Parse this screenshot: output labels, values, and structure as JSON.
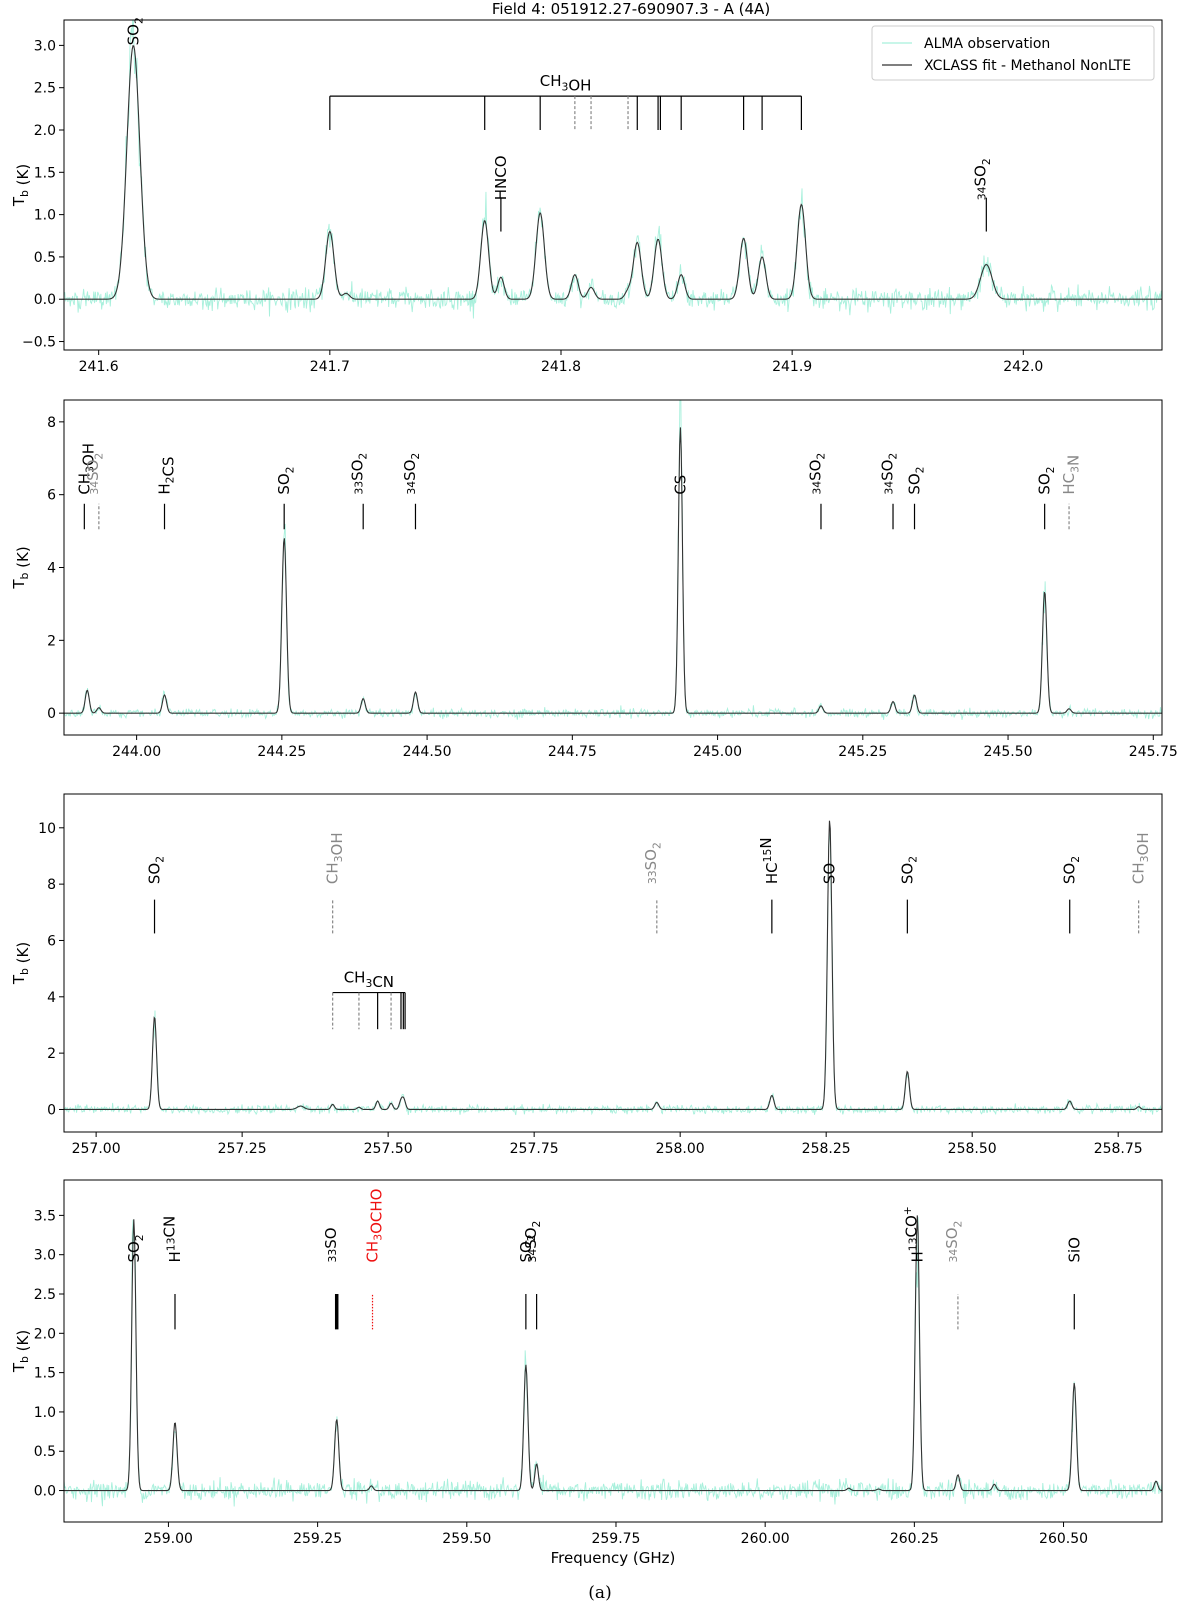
{
  "figure": {
    "title": "Field 4: 051912.27-690907.3 - A (4A)",
    "caption": "(a)",
    "legend": {
      "placement": "top-right",
      "entries": [
        "ALMA observation",
        "XCLASS fit - Methanol NonLTE"
      ]
    },
    "colors": {
      "observation": "#a8f0dc",
      "fit": "#333333",
      "label": "#000000",
      "tentative": "#888888",
      "highlight": "#ee1111"
    }
  },
  "chart_data": [
    {
      "type": "line",
      "panel": 1,
      "xlim": [
        241.585,
        242.06
      ],
      "ylim": [
        -0.6,
        3.3
      ],
      "xticks": [
        "241.6",
        "241.7",
        "241.8",
        "241.9",
        "242.0"
      ],
      "xtick_values": [
        241.6,
        241.7,
        241.8,
        241.9,
        242.0
      ],
      "yticks": [
        "−0.5",
        "0.0",
        "0.5",
        "1.0",
        "1.5",
        "2.0",
        "2.5",
        "3.0"
      ],
      "ytick_values": [
        -0.5,
        0,
        0.5,
        1.0,
        1.5,
        2.0,
        2.5,
        3.0
      ],
      "ylabel": "Tb (K)",
      "xlabel": "",
      "noise": 0.06,
      "peaks": [
        {
          "x": 241.615,
          "y": 3.0,
          "w": 0.0028
        },
        {
          "x": 241.7,
          "y": 0.8,
          "w": 0.0018
        },
        {
          "x": 241.707,
          "y": 0.07,
          "w": 0.0015
        },
        {
          "x": 241.767,
          "y": 0.93,
          "w": 0.0017
        },
        {
          "x": 241.774,
          "y": 0.26,
          "w": 0.0014
        },
        {
          "x": 241.791,
          "y": 1.02,
          "w": 0.0018
        },
        {
          "x": 241.806,
          "y": 0.29,
          "w": 0.0015
        },
        {
          "x": 241.813,
          "y": 0.14,
          "w": 0.0015
        },
        {
          "x": 241.829,
          "y": 0.09,
          "w": 0.0014
        },
        {
          "x": 241.833,
          "y": 0.67,
          "w": 0.0017
        },
        {
          "x": 241.842,
          "y": 0.71,
          "w": 0.0017
        },
        {
          "x": 241.852,
          "y": 0.29,
          "w": 0.0015
        },
        {
          "x": 241.879,
          "y": 0.72,
          "w": 0.0017
        },
        {
          "x": 241.887,
          "y": 0.5,
          "w": 0.0016
        },
        {
          "x": 241.904,
          "y": 1.12,
          "w": 0.0018
        },
        {
          "x": 241.984,
          "y": 0.41,
          "w": 0.0025
        }
      ],
      "labels": [
        {
          "x": 241.615,
          "text": "SO2",
          "tick": false,
          "color": "label",
          "y": 3.0
        },
        {
          "x": 241.774,
          "text": "HNCO",
          "tick": true,
          "color": "label",
          "y": 1.17,
          "ty0": 0.8,
          "ty1": 1.2
        },
        {
          "x": 241.984,
          "text": "34SO2",
          "tick": true,
          "color": "label",
          "y": 1.17,
          "ty0": 0.8,
          "ty1": 1.2
        }
      ],
      "brackets": [
        {
          "label": "CH3OH",
          "y": 2.4,
          "x0": 241.7,
          "x1": 241.904,
          "ybot": 2.0,
          "solid": [
            241.7,
            241.767,
            241.791,
            241.833,
            241.842,
            241.843,
            241.852,
            241.879,
            241.887,
            241.904
          ],
          "dashed": [
            241.806,
            241.813,
            241.829
          ]
        }
      ]
    },
    {
      "type": "line",
      "panel": 2,
      "xlim": [
        243.875,
        245.765
      ],
      "ylim": [
        -0.6,
        8.6
      ],
      "xticks": [
        "244.00",
        "244.25",
        "244.50",
        "244.75",
        "245.00",
        "245.25",
        "245.50",
        "245.75"
      ],
      "xtick_values": [
        244.0,
        244.25,
        244.5,
        244.75,
        245.0,
        245.25,
        245.5,
        245.75
      ],
      "yticks": [
        "0",
        "2",
        "4",
        "6",
        "8"
      ],
      "ytick_values": [
        0,
        2,
        4,
        6,
        8
      ],
      "ylabel": "Tb (K)",
      "xlabel": "",
      "noise": 0.06,
      "peaks": [
        {
          "x": 243.915,
          "y": 0.63,
          "w": 0.0035
        },
        {
          "x": 243.935,
          "y": 0.15,
          "w": 0.0035
        },
        {
          "x": 244.048,
          "y": 0.5,
          "w": 0.0035
        },
        {
          "x": 244.254,
          "y": 4.82,
          "w": 0.004
        },
        {
          "x": 244.39,
          "y": 0.4,
          "w": 0.0035
        },
        {
          "x": 244.48,
          "y": 0.58,
          "w": 0.0035
        },
        {
          "x": 244.936,
          "y": 7.85,
          "w": 0.0035
        },
        {
          "x": 245.178,
          "y": 0.2,
          "w": 0.0035
        },
        {
          "x": 245.302,
          "y": 0.32,
          "w": 0.0035
        },
        {
          "x": 245.339,
          "y": 0.5,
          "w": 0.0035
        },
        {
          "x": 245.563,
          "y": 3.35,
          "w": 0.0038
        },
        {
          "x": 245.605,
          "y": 0.12,
          "w": 0.0035
        }
      ],
      "labels": [
        {
          "x": 243.91,
          "text": "CH3OH",
          "tick": true,
          "color": "label",
          "y": 6.0,
          "ty0": 5.05,
          "ty1": 5.75
        },
        {
          "x": 243.935,
          "text": "34SO2",
          "tick": true,
          "dashed": true,
          "color": "tentative",
          "y": 6.0,
          "ty0": 5.05,
          "ty1": 5.75
        },
        {
          "x": 244.048,
          "text": "H2CS",
          "tick": true,
          "color": "label",
          "y": 6.0,
          "ty0": 5.05,
          "ty1": 5.75
        },
        {
          "x": 244.254,
          "text": "SO2",
          "tick": true,
          "color": "label",
          "y": 6.0,
          "ty0": 5.05,
          "ty1": 5.75
        },
        {
          "x": 244.39,
          "text": "33SO2",
          "tick": true,
          "color": "label",
          "y": 6.0,
          "ty0": 5.05,
          "ty1": 5.75
        },
        {
          "x": 244.48,
          "text": "34SO2",
          "tick": true,
          "color": "label",
          "y": 6.0,
          "ty0": 5.05,
          "ty1": 5.75
        },
        {
          "x": 244.936,
          "text": "CS",
          "tick": false,
          "color": "label",
          "y": 6.0
        },
        {
          "x": 245.178,
          "text": "34SO2",
          "tick": true,
          "color": "label",
          "y": 6.0,
          "ty0": 5.05,
          "ty1": 5.75
        },
        {
          "x": 245.302,
          "text": "34SO2",
          "tick": true,
          "color": "label",
          "y": 6.0,
          "ty0": 5.05,
          "ty1": 5.75
        },
        {
          "x": 245.339,
          "text": "SO2",
          "tick": true,
          "color": "label",
          "y": 6.0,
          "ty0": 5.05,
          "ty1": 5.75
        },
        {
          "x": 245.563,
          "text": "SO2",
          "tick": true,
          "color": "label",
          "y": 6.0,
          "ty0": 5.05,
          "ty1": 5.75
        },
        {
          "x": 245.605,
          "text": "HC3N",
          "tick": true,
          "dashed": true,
          "color": "tentative",
          "y": 6.0,
          "ty0": 5.05,
          "ty1": 5.75
        }
      ],
      "brackets": []
    },
    {
      "type": "line",
      "panel": 3,
      "xlim": [
        256.945,
        258.825
      ],
      "ylim": [
        -0.8,
        11.2
      ],
      "xticks": [
        "257.00",
        "257.25",
        "257.50",
        "257.75",
        "258.00",
        "258.25",
        "258.50",
        "258.75"
      ],
      "xtick_values": [
        257.0,
        257.25,
        257.5,
        257.75,
        258.0,
        258.25,
        258.5,
        258.75
      ],
      "yticks": [
        "0",
        "2",
        "4",
        "6",
        "8",
        "10"
      ],
      "ytick_values": [
        0,
        2,
        4,
        6,
        8,
        10
      ],
      "ylabel": "Tb (K)",
      "xlabel": "",
      "noise": 0.07,
      "peaks": [
        {
          "x": 257.1,
          "y": 3.3,
          "w": 0.0035
        },
        {
          "x": 257.35,
          "y": 0.12,
          "w": 0.006
        },
        {
          "x": 257.405,
          "y": 0.18,
          "w": 0.003
        },
        {
          "x": 257.45,
          "y": 0.08,
          "w": 0.003
        },
        {
          "x": 257.482,
          "y": 0.3,
          "w": 0.003
        },
        {
          "x": 257.505,
          "y": 0.22,
          "w": 0.003
        },
        {
          "x": 257.522,
          "y": 0.3,
          "w": 0.003
        },
        {
          "x": 257.527,
          "y": 0.33,
          "w": 0.003
        },
        {
          "x": 257.96,
          "y": 0.25,
          "w": 0.0035
        },
        {
          "x": 258.157,
          "y": 0.5,
          "w": 0.0035
        },
        {
          "x": 258.256,
          "y": 10.3,
          "w": 0.0038
        },
        {
          "x": 258.389,
          "y": 1.35,
          "w": 0.0035
        },
        {
          "x": 258.667,
          "y": 0.3,
          "w": 0.0035
        },
        {
          "x": 258.785,
          "y": 0.1,
          "w": 0.003
        }
      ],
      "labels": [
        {
          "x": 257.1,
          "text": "SO2",
          "tick": true,
          "color": "label",
          "y": 8.0,
          "ty0": 6.25,
          "ty1": 7.45
        },
        {
          "x": 257.405,
          "text": "CH3OH",
          "tick": true,
          "dashed": true,
          "color": "tentative",
          "y": 8.0,
          "ty0": 6.25,
          "ty1": 7.45
        },
        {
          "x": 257.96,
          "text": "33SO2",
          "tick": true,
          "dashed": true,
          "color": "tentative",
          "y": 8.0,
          "ty0": 6.25,
          "ty1": 7.45
        },
        {
          "x": 258.157,
          "text": "HC15N",
          "tick": true,
          "color": "label",
          "y": 8.0,
          "ty0": 6.25,
          "ty1": 7.45
        },
        {
          "x": 258.256,
          "text": "SO",
          "tick": false,
          "color": "label",
          "y": 8.0
        },
        {
          "x": 258.389,
          "text": "SO2",
          "tick": true,
          "color": "label",
          "y": 8.0,
          "ty0": 6.25,
          "ty1": 7.45
        },
        {
          "x": 258.667,
          "text": "SO2",
          "tick": true,
          "color": "label",
          "y": 8.0,
          "ty0": 6.25,
          "ty1": 7.45
        },
        {
          "x": 258.785,
          "text": "CH3OH",
          "tick": true,
          "dashed": true,
          "color": "tentative",
          "y": 8.0,
          "ty0": 6.25,
          "ty1": 7.45
        }
      ],
      "brackets": [
        {
          "label": "CH3CN",
          "y": 4.15,
          "x0": 257.405,
          "x1": 257.529,
          "ybot": 2.85,
          "solid": [
            257.482,
            257.522,
            257.526,
            257.529
          ],
          "dashed": [
            257.405,
            257.45,
            257.505
          ]
        }
      ]
    },
    {
      "type": "line",
      "panel": 4,
      "xlim": [
        258.825,
        260.665
      ],
      "ylim": [
        -0.4,
        3.95
      ],
      "xticks": [
        "259.00",
        "259.25",
        "259.50",
        "259.75",
        "260.00",
        "260.25",
        "260.50"
      ],
      "xtick_values": [
        259.0,
        259.25,
        259.5,
        259.75,
        260.0,
        260.25,
        260.5
      ],
      "yticks": [
        "0.0",
        "0.5",
        "1.0",
        "1.5",
        "2.0",
        "2.5",
        "3.0",
        "3.5"
      ],
      "ytick_values": [
        0,
        0.5,
        1.0,
        1.5,
        2.0,
        2.5,
        3.0,
        3.5
      ],
      "ylabel": "Tb (K)",
      "xlabel": "Frequency (GHz)",
      "noise": 0.06,
      "peaks": [
        {
          "x": 258.942,
          "y": 3.45,
          "w": 0.0035
        },
        {
          "x": 259.011,
          "y": 0.87,
          "w": 0.0035
        },
        {
          "x": 259.282,
          "y": 0.91,
          "w": 0.0035
        },
        {
          "x": 259.34,
          "y": 0.06,
          "w": 0.003
        },
        {
          "x": 259.599,
          "y": 1.6,
          "w": 0.0035
        },
        {
          "x": 259.617,
          "y": 0.34,
          "w": 0.003
        },
        {
          "x": 260.14,
          "y": 0.03,
          "w": 0.003
        },
        {
          "x": 260.19,
          "y": 0.02,
          "w": 0.003
        },
        {
          "x": 260.255,
          "y": 3.5,
          "w": 0.0035
        },
        {
          "x": 260.323,
          "y": 0.2,
          "w": 0.003
        },
        {
          "x": 260.384,
          "y": 0.08,
          "w": 0.003
        },
        {
          "x": 260.518,
          "y": 1.37,
          "w": 0.0035
        },
        {
          "x": 260.655,
          "y": 0.12,
          "w": 0.003
        }
      ],
      "labels": [
        {
          "x": 258.942,
          "text": "SO2",
          "tick": false,
          "color": "label",
          "y": 2.9
        },
        {
          "x": 259.011,
          "text": "H13CN",
          "tick": true,
          "color": "label",
          "y": 2.9,
          "ty0": 2.05,
          "ty1": 2.5
        },
        {
          "x": 259.282,
          "text": "33SO",
          "tick": true,
          "bold": true,
          "color": "label",
          "y": 2.9,
          "ty0": 2.05,
          "ty1": 2.5
        },
        {
          "x": 259.342,
          "text": "CH3OCHO",
          "tick": true,
          "dotted": true,
          "color": "highlight",
          "y": 2.9,
          "ty0": 2.05,
          "ty1": 2.5
        },
        {
          "x": 259.599,
          "text": "SO2",
          "tick": true,
          "color": "label",
          "y": 2.9,
          "ty0": 2.05,
          "ty1": 2.5
        },
        {
          "x": 259.617,
          "text": "34SO2",
          "tick": true,
          "color": "label",
          "y": 2.9,
          "ty0": 2.05,
          "ty1": 2.5
        },
        {
          "x": 260.255,
          "text": "H13CO+",
          "tick": false,
          "color": "label",
          "y": 2.9
        },
        {
          "x": 260.323,
          "text": "34SO2",
          "tick": true,
          "dashed": true,
          "color": "tentative",
          "y": 2.9,
          "ty0": 2.05,
          "ty1": 2.5
        },
        {
          "x": 260.518,
          "text": "SiO",
          "tick": true,
          "color": "label",
          "y": 2.9,
          "ty0": 2.05,
          "ty1": 2.5
        }
      ],
      "brackets": []
    }
  ]
}
